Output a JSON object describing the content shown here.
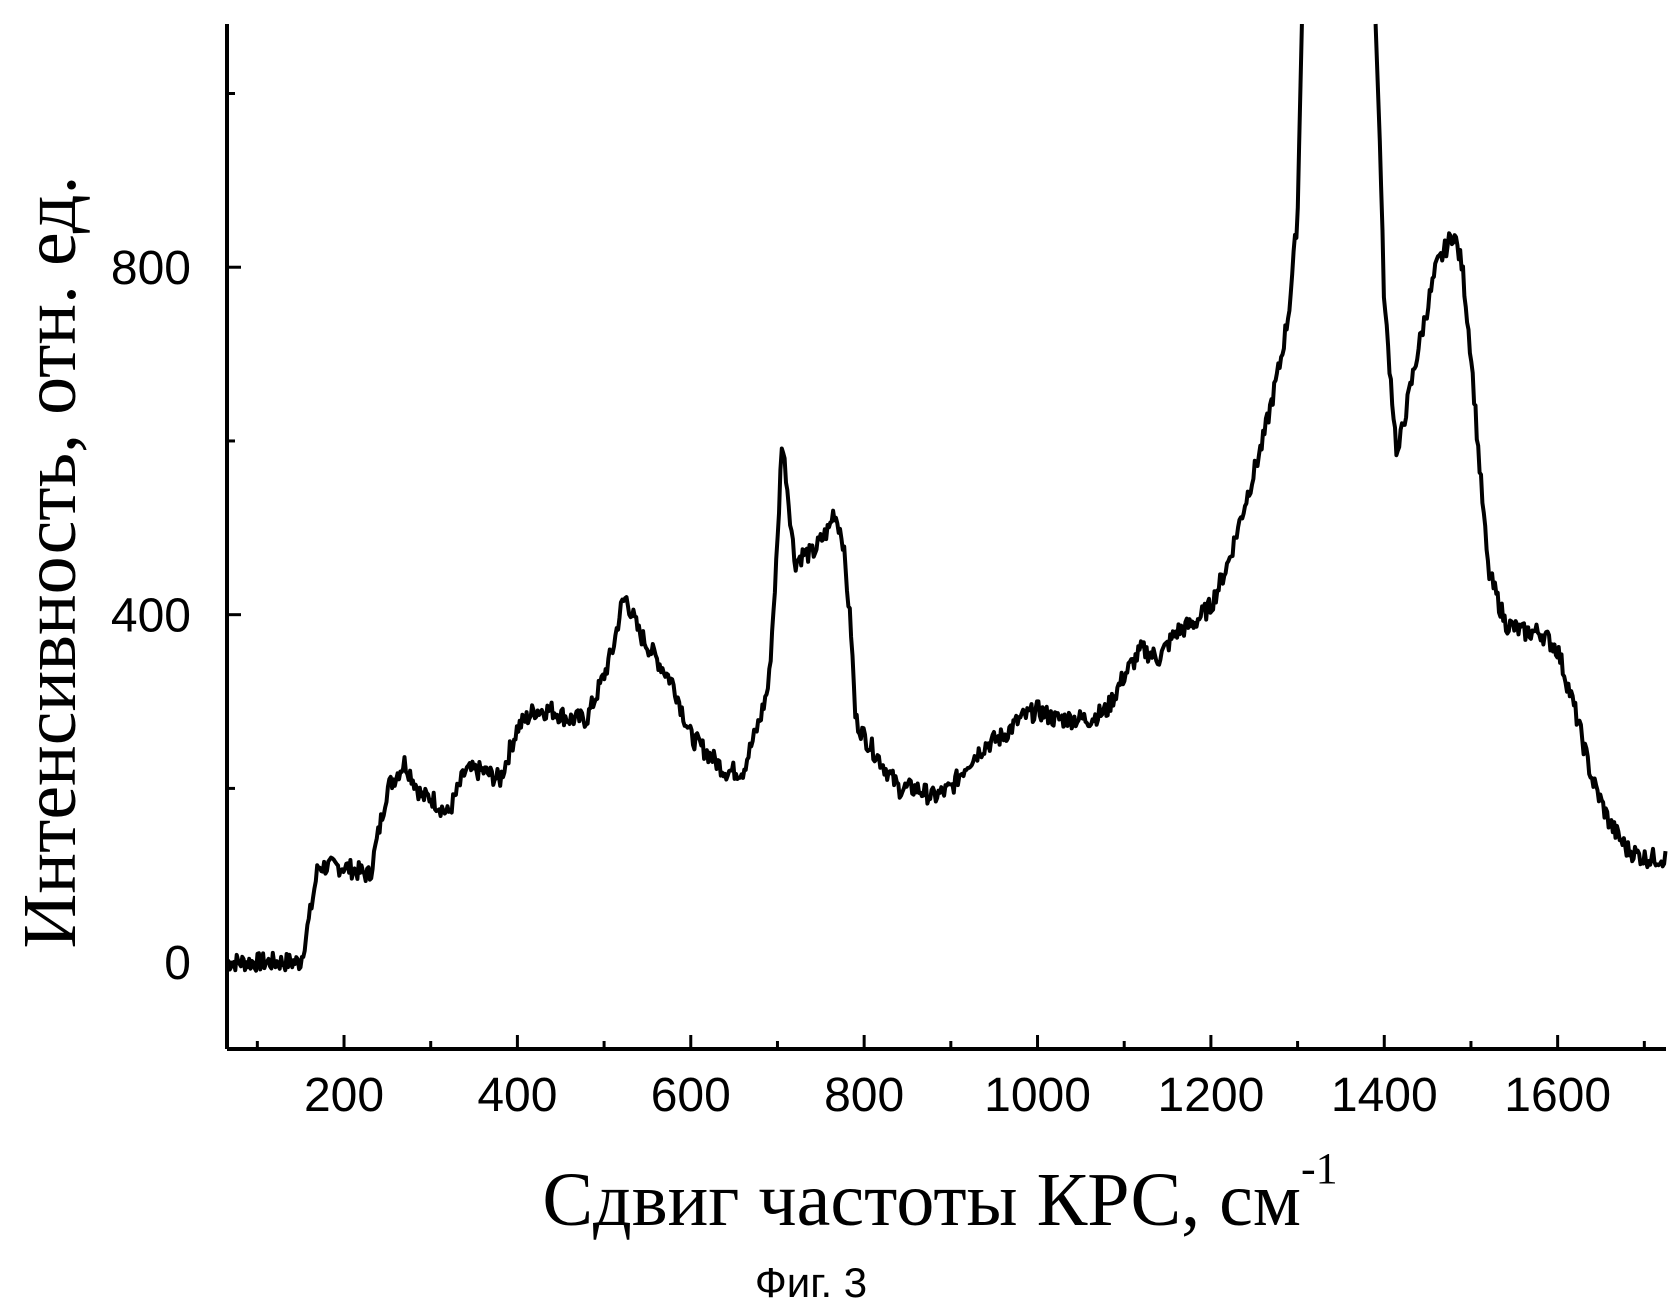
{
  "chart_data": {
    "type": "line",
    "title": "",
    "xlabel": "Сдвиг частоты КРС, см",
    "xlabel_superscript": "-1",
    "ylabel": "Интенсивность, отн. ед.",
    "caption": "Фиг. 3",
    "xlim": [
      65,
      1725
    ],
    "ylim": [
      -100,
      1080
    ],
    "x_ticks": [
      200,
      400,
      600,
      800,
      1000,
      1200,
      1400,
      1600
    ],
    "x_tick_labels": [
      "200",
      "400",
      "600",
      "800",
      "1000",
      "1200",
      "1400",
      "1600"
    ],
    "y_ticks": [
      0,
      400,
      800
    ],
    "y_tick_labels": [
      "0",
      "400",
      "800"
    ],
    "grid": false,
    "legend": "none",
    "line_color": "#000000",
    "series": [
      {
        "x": [
          65,
          100,
          150,
          160,
          170,
          200,
          230,
          250,
          270,
          290,
          300,
          320,
          340,
          360,
          380,
          400,
          420,
          440,
          460,
          480,
          500,
          510,
          520,
          525,
          540,
          560,
          580,
          600,
          620,
          640,
          660,
          680,
          690,
          700,
          705,
          710,
          720,
          730,
          740,
          760,
          765,
          775,
          785,
          790,
          800,
          820,
          840,
          860,
          880,
          900,
          920,
          940,
          960,
          980,
          1000,
          1020,
          1040,
          1060,
          1080,
          1100,
          1120,
          1140,
          1160,
          1180,
          1200,
          1220,
          1240,
          1260,
          1280,
          1290,
          1300,
          1305,
          1390,
          1395,
          1400,
          1410,
          1415,
          1420,
          1440,
          1460,
          1480,
          1490,
          1500,
          1510,
          1520,
          1540,
          1560,
          1580,
          1600,
          1620,
          1640,
          1660,
          1680,
          1700,
          1725
        ],
        "y": [
          0,
          0,
          0,
          50,
          110,
          110,
          100,
          200,
          230,
          190,
          190,
          170,
          220,
          220,
          210,
          270,
          290,
          290,
          280,
          280,
          330,
          360,
          410,
          420,
          380,
          350,
          320,
          260,
          240,
          220,
          220,
          280,
          320,
          480,
          600,
          560,
          460,
          470,
          470,
          500,
          520,
          490,
          380,
          280,
          260,
          230,
          200,
          200,
          190,
          200,
          230,
          250,
          260,
          280,
          290,
          280,
          280,
          280,
          290,
          330,
          360,
          350,
          380,
          390,
          410,
          460,
          530,
          600,
          690,
          750,
          860,
          1080,
          1080,
          940,
          760,
          640,
          580,
          610,
          710,
          800,
          840,
          800,
          700,
          570,
          450,
          390,
          380,
          380,
          360,
          290,
          210,
          160,
          130,
          120,
          120
        ]
      }
    ]
  }
}
